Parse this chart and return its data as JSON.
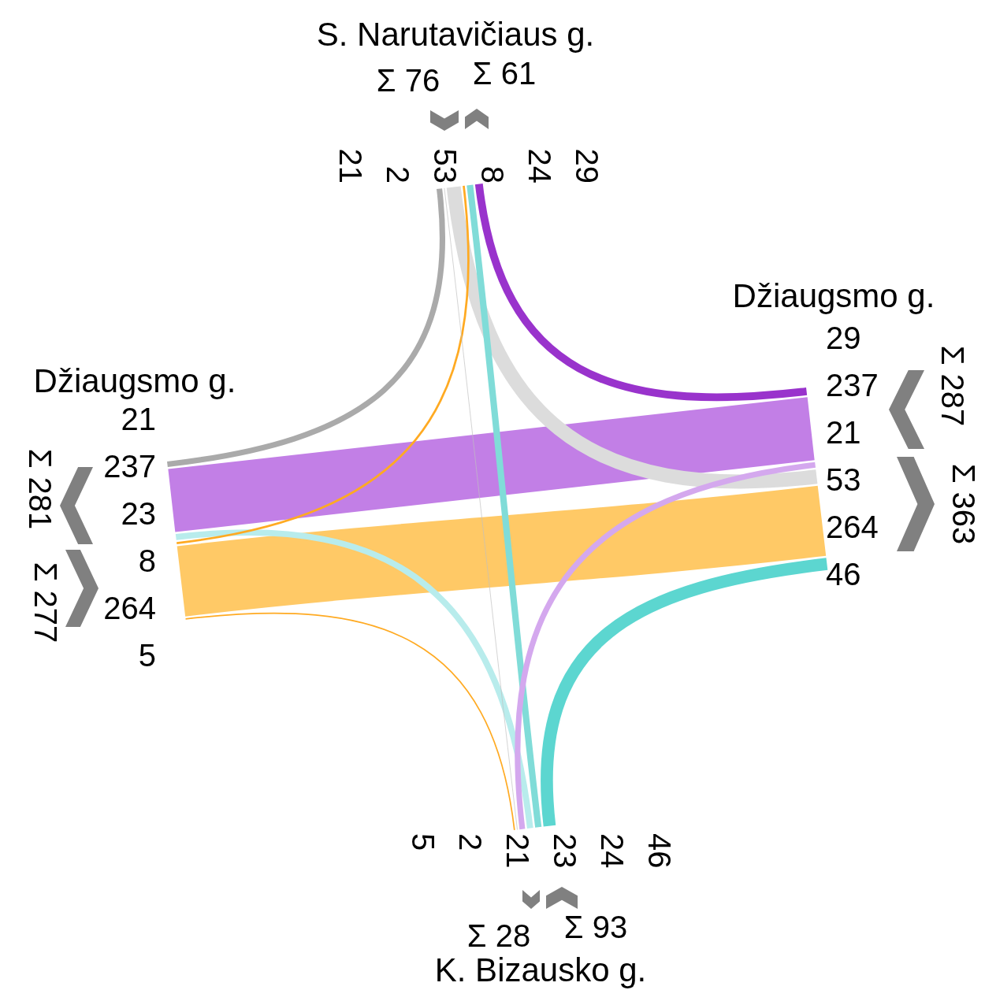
{
  "chart_data": {
    "type": "other",
    "categories": [
      "S. Narutavičiaus g.",
      "Džiaugsmo g.",
      "K. Bizausko g.",
      "Džiaugsmo g."
    ],
    "series": [
      {
        "values": [
          null,
          53,
          2,
          21
        ],
        "colors": [
          null,
          "#dcdcdc",
          "#c0c0c0",
          "#aaaaaa"
        ]
      },
      {
        "values": [
          29,
          null,
          21,
          237
        ],
        "colors": [
          "#9933cc",
          null,
          "#d4a8ee",
          "#c27fe6"
        ]
      },
      {
        "values": [
          24,
          46,
          null,
          23
        ],
        "colors": [
          "#80dcd8",
          "#5cd6d0",
          null,
          "#b8ecec"
        ]
      },
      {
        "values": [
          8,
          264,
          5,
          null
        ],
        "colors": [
          "#ffaa22",
          "#ffc966",
          "#ffaa22",
          null
        ]
      }
    ],
    "totals": [
      "Σ 76",
      "Σ 61",
      "Σ 287",
      "Σ 363",
      "Σ 93",
      "Σ 28",
      "Σ 277",
      "Σ 281"
    ],
    "annotations": [
      "21",
      "2",
      "53",
      "29",
      "237",
      "21",
      "23",
      "24",
      "46",
      "8",
      "264",
      "5"
    ],
    "data_labels": true
  }
}
